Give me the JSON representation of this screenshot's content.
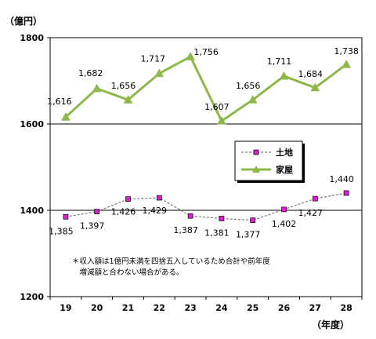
{
  "chart_data": {
    "type": "line",
    "yunit": "（億円）",
    "xunit": "（年度）",
    "categories": [
      "19",
      "20",
      "21",
      "22",
      "23",
      "24",
      "25",
      "26",
      "27",
      "28"
    ],
    "ylim": [
      1200,
      1800
    ],
    "yticks": [
      1200,
      1400,
      1600,
      1800
    ],
    "grid": true,
    "legend_position": "right-middle",
    "series": [
      {
        "name": "家屋",
        "color": "#8db84a",
        "marker": "triangle",
        "values": [
          1616,
          1682,
          1656,
          1717,
          1756,
          1607,
          1656,
          1711,
          1684,
          1738
        ],
        "labels": [
          "1,616",
          "1,682",
          "1,656",
          "1,717",
          "1,756",
          "1,607",
          "1,656",
          "1,711",
          "1,684",
          "1,738"
        ]
      },
      {
        "name": "土地",
        "color": "#7a7a7a",
        "marker_color": "#e020d0",
        "marker": "square",
        "dashed": true,
        "values": [
          1385,
          1397,
          1426,
          1429,
          1387,
          1381,
          1377,
          1402,
          1427,
          1440
        ],
        "labels": [
          "1,385",
          "1,397",
          "1,426",
          "1,429",
          "1,387",
          "1,381",
          "1,377",
          "1,402",
          "1,427",
          "1,440"
        ]
      }
    ],
    "annotation": [
      "＊収入額は1億円未満を四捨五入しているため合計や前年度",
      "　増減額と合わない場合がある。"
    ]
  }
}
